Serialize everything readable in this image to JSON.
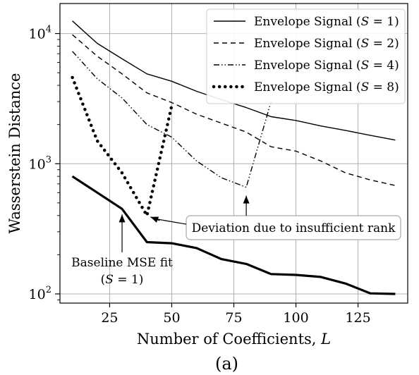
{
  "chart_data": {
    "type": "line",
    "xlabel": "Number of Coefficients,",
    "xlabel_var": "L",
    "ylabel": "Wasserstein Distance",
    "yscale": "log",
    "xlim": [
      5,
      145
    ],
    "ylim": [
      85,
      17000
    ],
    "x_ticks": [
      25,
      50,
      75,
      100,
      125
    ],
    "x_tick_labels": [
      "25",
      "50",
      "75",
      "100",
      "125"
    ],
    "y_ticks": [
      100,
      1000,
      10000
    ],
    "y_tick_labels": [
      {
        "base": "10",
        "exp": "2"
      },
      {
        "base": "10",
        "exp": "3"
      },
      {
        "base": "10",
        "exp": "4"
      }
    ],
    "grid": true,
    "legend_position": "top-right",
    "series": [
      {
        "name": "Envelope Signal (S = 1)",
        "legend_text": "Envelope Signal (",
        "legend_var": "S",
        "legend_value": " = 1)",
        "style": "solid",
        "x": [
          10,
          20,
          30,
          40,
          50,
          60,
          70,
          80,
          90,
          100,
          110,
          120,
          130,
          140
        ],
        "y": [
          12500,
          8400,
          6400,
          4900,
          4300,
          3600,
          3100,
          2700,
          2300,
          2150,
          1950,
          1800,
          1650,
          1520
        ]
      },
      {
        "name": "Envelope Signal (S = 2)",
        "legend_text": "Envelope Signal (",
        "legend_var": "S",
        "legend_value": " = 2)",
        "style": "dashed",
        "x": [
          10,
          20,
          30,
          40,
          50,
          60,
          70,
          80,
          90,
          100,
          110,
          120,
          130,
          140
        ],
        "y": [
          9800,
          6700,
          4900,
          3500,
          2950,
          2400,
          2050,
          1750,
          1350,
          1250,
          1050,
          850,
          750,
          680
        ]
      },
      {
        "name": "Envelope Signal (S = 4)",
        "legend_text": "Envelope Signal (",
        "legend_var": "S",
        "legend_value": " = 4)",
        "style": "dashdot",
        "x": [
          10,
          20,
          30,
          40,
          50,
          60,
          70,
          80,
          90
        ],
        "y": [
          7300,
          4500,
          3200,
          2000,
          1600,
          1050,
          780,
          660,
          3000
        ]
      },
      {
        "name": "Envelope Signal (S = 8)",
        "legend_text": "Envelope Signal (",
        "legend_var": "S",
        "legend_value": " = 8)",
        "style": "dotted",
        "x": [
          10,
          20,
          30,
          40,
          50
        ],
        "y": [
          4600,
          1500,
          850,
          400,
          2800
        ]
      },
      {
        "name": "Baseline MSE fit",
        "style": "thick",
        "x": [
          10,
          20,
          30,
          40,
          50,
          60,
          70,
          80,
          90,
          100,
          110,
          120,
          130,
          140
        ],
        "y": [
          800,
          600,
          450,
          250,
          245,
          225,
          185,
          170,
          142,
          140,
          135,
          120,
          101,
          100
        ]
      }
    ],
    "annotations": [
      {
        "text": "Deviation due to insufficient rank",
        "boxed": true
      }
    ],
    "baseline_label": {
      "line1": "Baseline MSE fit",
      "line2_prefix": "(",
      "line2_var": "S",
      "line2_suffix": " = 1)"
    },
    "caption": "(a)"
  }
}
